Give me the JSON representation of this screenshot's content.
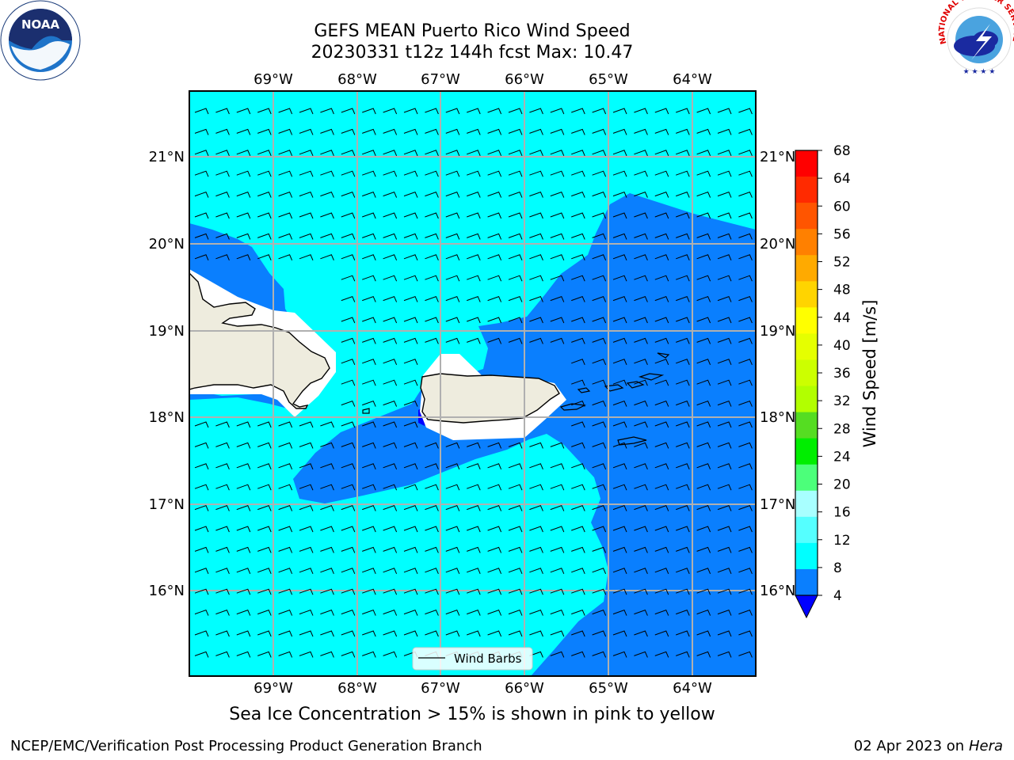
{
  "title": {
    "line1": "GEFS MEAN Puerto Rico Wind Speed",
    "line2": "20230331 t12z 144h fcst   Max: 10.47"
  },
  "map": {
    "lon_labels": [
      "69°W",
      "68°W",
      "67°W",
      "66°W",
      "65°W",
      "64°W"
    ],
    "lat_labels": [
      "21°N",
      "20°N",
      "19°N",
      "18°N",
      "17°N",
      "16°N"
    ],
    "legend_label": "Wind Barbs",
    "colors": {
      "band_4_8": "#0a7ffe",
      "band_8_12": "#00ffff",
      "land": "#eeecde",
      "ocean_outline": "#000000"
    }
  },
  "colorbar": {
    "label": "Wind Speed [m/s]",
    "ticks": [
      "68",
      "64",
      "60",
      "56",
      "52",
      "48",
      "44",
      "40",
      "36",
      "32",
      "28",
      "24",
      "20",
      "16",
      "12",
      "8",
      "4"
    ],
    "colors": [
      "#ff0000",
      "#ff2a00",
      "#ff5500",
      "#ff8000",
      "#ffaa00",
      "#ffd400",
      "#ffff00",
      "#e5ff00",
      "#ccff00",
      "#b2ff00",
      "#55dd22",
      "#00ee00",
      "#4cff7a",
      "#a8ffff",
      "#55ffff",
      "#00ffff",
      "#0a7ffe"
    ],
    "under_color": "#0000ff"
  },
  "caption": "Sea Ice Concentration > 15% is shown in pink to yellow",
  "footer": {
    "left": "NCEP/EMC/Verification Post Processing Product Generation Branch",
    "right_date": "02 Apr 2023 on",
    "right_machine": "Hera"
  },
  "logos": {
    "noaa_text": "NOAA",
    "nws_text": "NATIONAL WEATHER SERVICE"
  }
}
